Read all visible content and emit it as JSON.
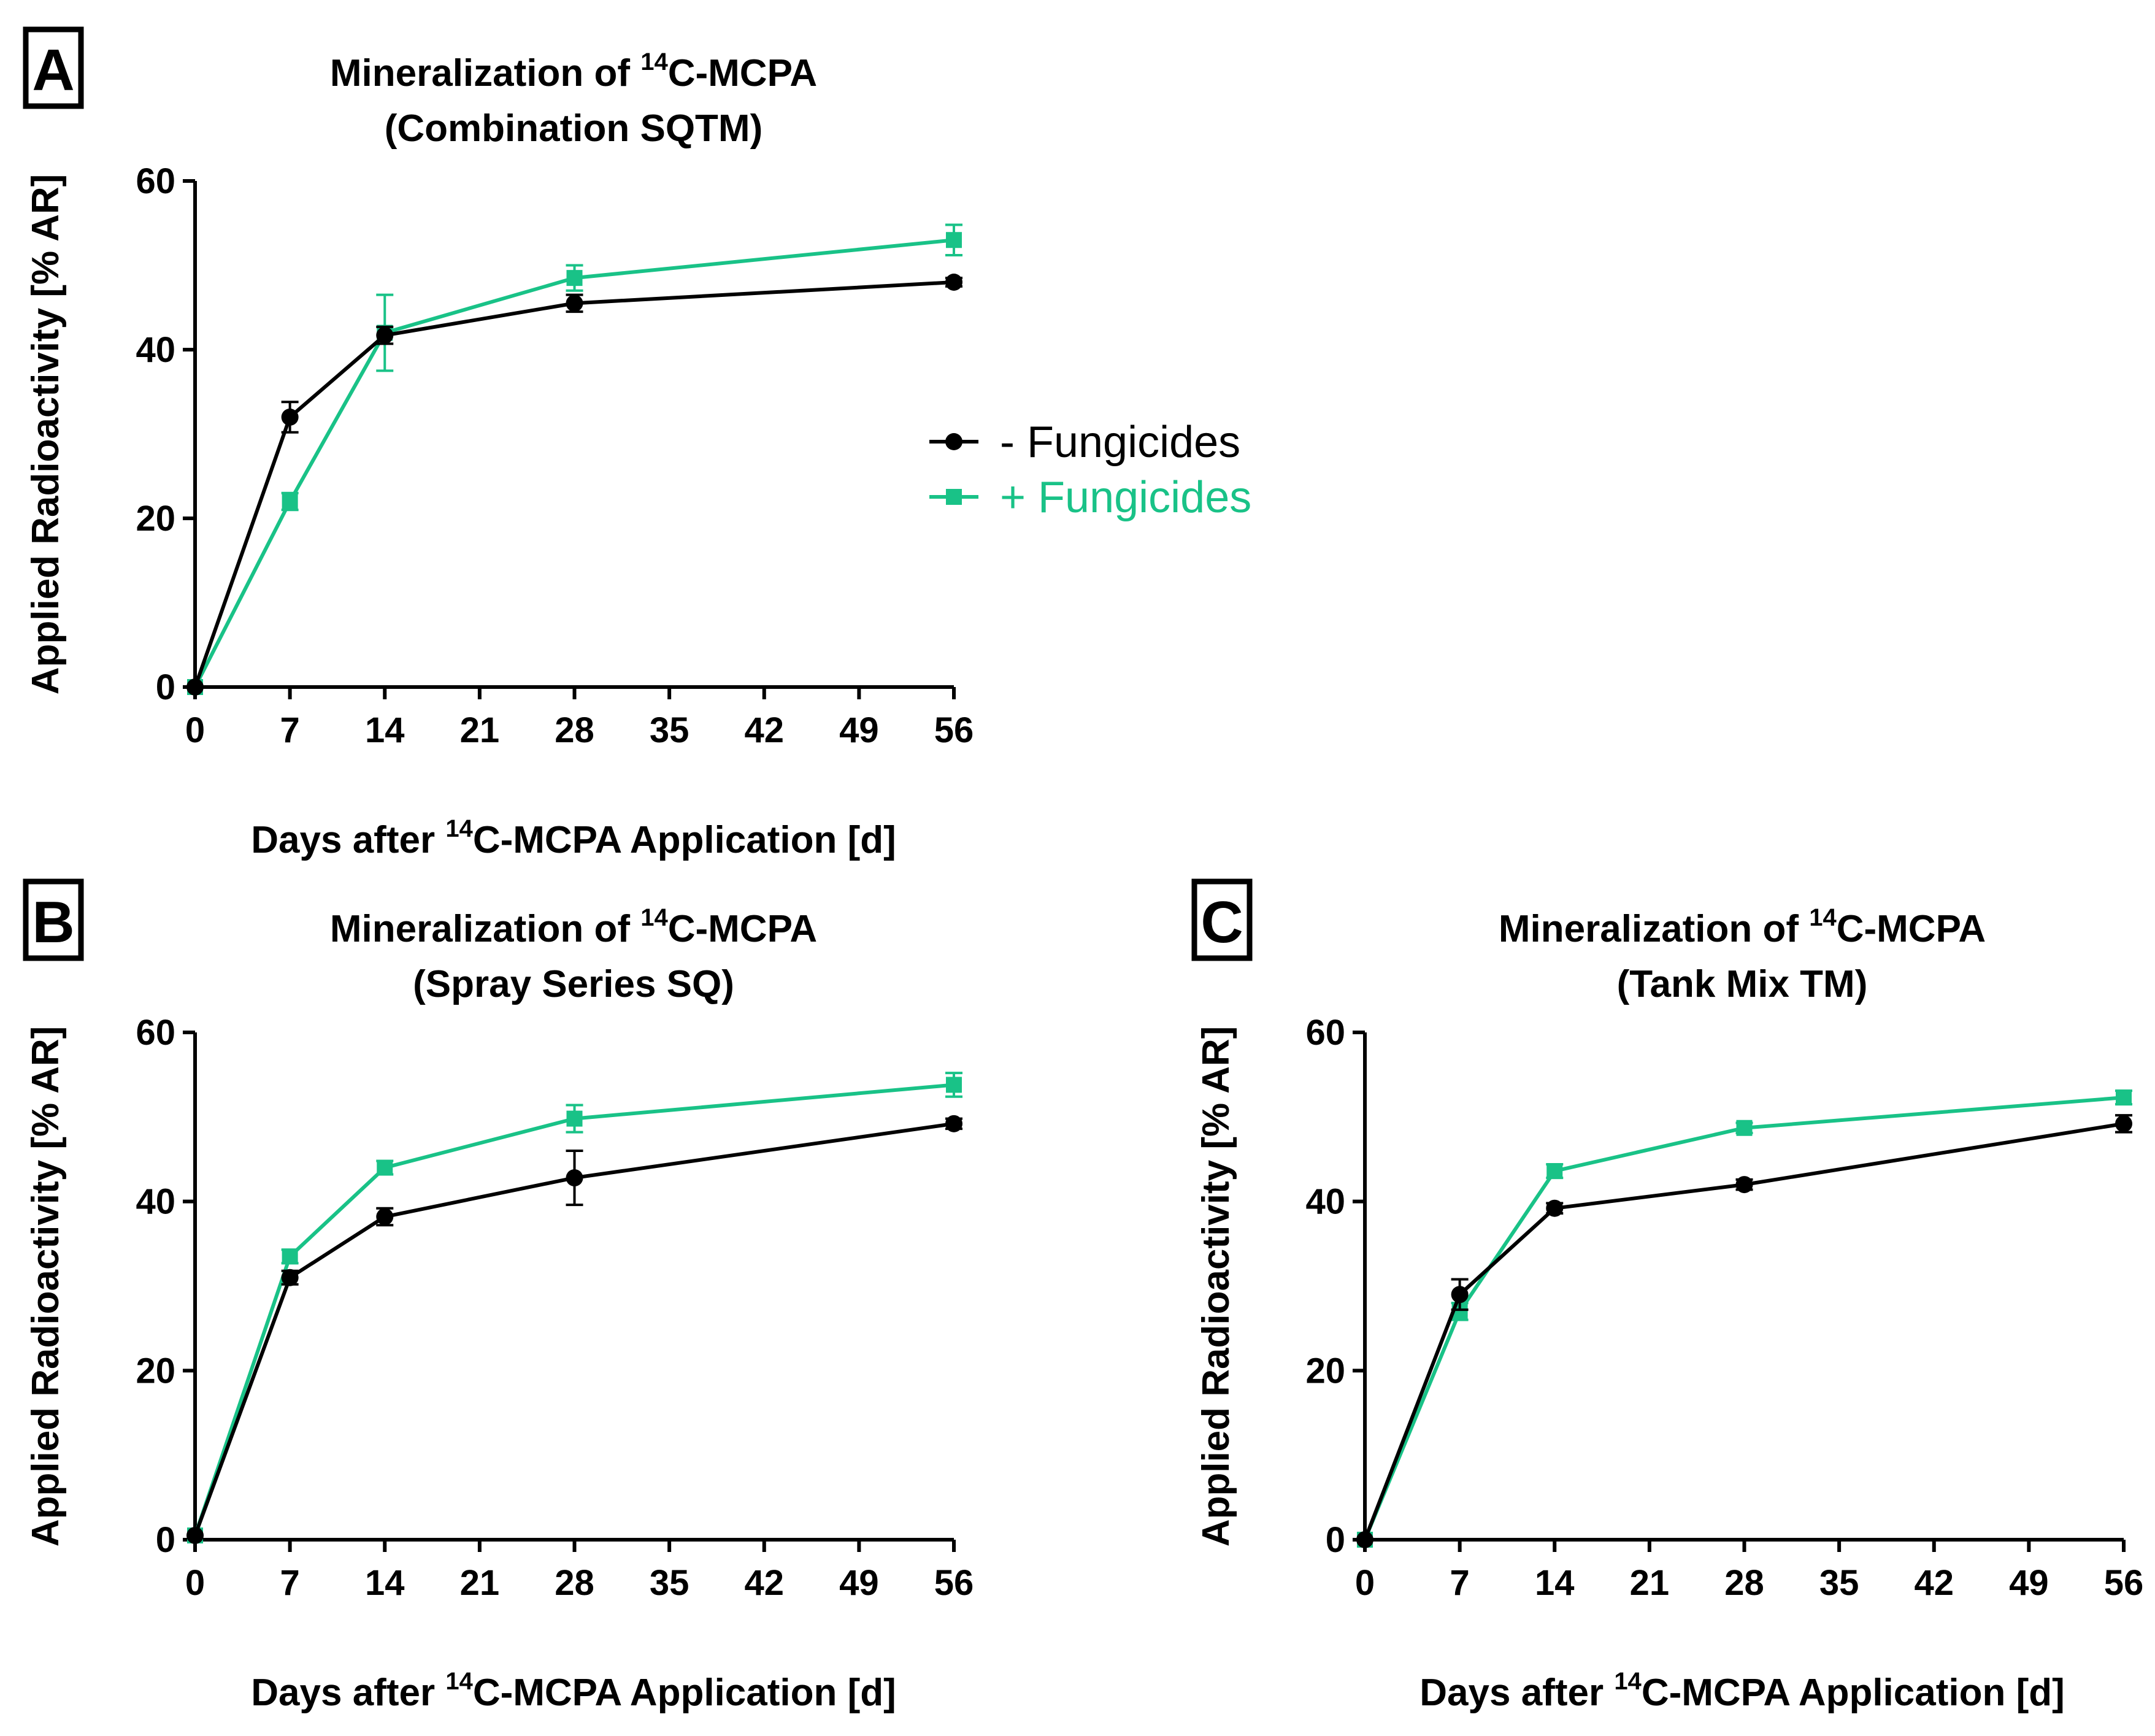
{
  "colors": {
    "minus": "#000000",
    "plus": "#19c287"
  },
  "legend": {
    "minus_label": "- Fungicides",
    "plus_label": "+ Fungicides",
    "placement": "right of panel A"
  },
  "chart_data": [
    {
      "type": "line",
      "panel": "A",
      "title": {
        "line1_pre": "Mineralization of ",
        "sup": "14",
        "line1_post": "C-MCPA",
        "line2": "(Combination SQTM)"
      },
      "xlabel": {
        "pre": "Days after ",
        "sup": "14",
        "post": "C-MCPA Application [d]"
      },
      "ylabel": "Applied Radioactivity [% AR]",
      "xlim": [
        0,
        56
      ],
      "ylim": [
        0,
        60
      ],
      "xticks": [
        0,
        7,
        14,
        21,
        28,
        35,
        42,
        49,
        56
      ],
      "yticks": [
        0,
        20,
        40,
        60
      ],
      "x": [
        0,
        7,
        14,
        28,
        56
      ],
      "series": [
        {
          "name": "- Fungicides",
          "marker": "circle",
          "values": [
            0,
            32,
            41.7,
            45.5,
            48
          ],
          "errors": [
            0,
            1.8,
            1.0,
            1.0,
            0.5
          ]
        },
        {
          "name": "+ Fungicides",
          "marker": "square",
          "values": [
            0,
            22,
            42,
            48.5,
            53
          ],
          "errors": [
            0,
            1.0,
            4.5,
            1.5,
            1.8
          ]
        }
      ]
    },
    {
      "type": "line",
      "panel": "B",
      "title": {
        "line1_pre": "Mineralization of ",
        "sup": "14",
        "line1_post": "C-MCPA",
        "line2": "(Spray Series SQ)"
      },
      "xlabel": {
        "pre": "Days after ",
        "sup": "14",
        "post": "C-MCPA Application [d]"
      },
      "ylabel": "Applied Radioactivity [% AR]",
      "xlim": [
        0,
        56
      ],
      "ylim": [
        0,
        60
      ],
      "xticks": [
        0,
        7,
        14,
        21,
        28,
        35,
        42,
        49,
        56
      ],
      "yticks": [
        0,
        20,
        40,
        60
      ],
      "x": [
        0,
        7,
        14,
        28,
        56
      ],
      "series": [
        {
          "name": "- Fungicides",
          "marker": "circle",
          "values": [
            0.5,
            31,
            38.2,
            42.8,
            49.2
          ],
          "errors": [
            0,
            0.8,
            1.0,
            3.2,
            0.6
          ]
        },
        {
          "name": "+ Fungicides",
          "marker": "square",
          "values": [
            0.5,
            33.5,
            44,
            49.8,
            53.8
          ],
          "errors": [
            0,
            0.8,
            0.8,
            1.6,
            1.4
          ]
        }
      ]
    },
    {
      "type": "line",
      "panel": "C",
      "title": {
        "line1_pre": "Mineralization of ",
        "sup": "14",
        "line1_post": "C-MCPA",
        "line2": "(Tank Mix TM)"
      },
      "xlabel": {
        "pre": "Days after ",
        "sup": "14",
        "post": "C-MCPA Application [d]"
      },
      "ylabel": "Applied Radioactivity [% AR]",
      "xlim": [
        0,
        56
      ],
      "ylim": [
        0,
        60
      ],
      "xticks": [
        0,
        7,
        14,
        21,
        28,
        35,
        42,
        49,
        56
      ],
      "yticks": [
        0,
        20,
        40,
        60
      ],
      "x": [
        0,
        7,
        14,
        28,
        56
      ],
      "series": [
        {
          "name": "- Fungicides",
          "marker": "circle",
          "values": [
            0,
            29,
            39.2,
            42,
            49.2
          ],
          "errors": [
            0,
            1.8,
            0.6,
            0.6,
            1.0
          ]
        },
        {
          "name": "+ Fungicides",
          "marker": "square",
          "values": [
            0,
            27,
            43.6,
            48.7,
            52.3
          ],
          "errors": [
            0,
            1.0,
            0.8,
            0.6,
            0.8
          ]
        }
      ]
    }
  ]
}
